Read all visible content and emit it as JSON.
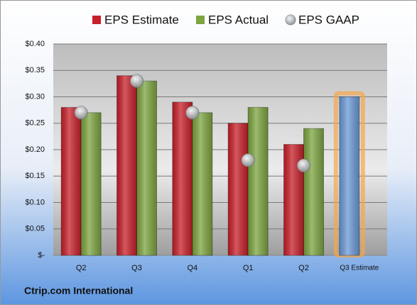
{
  "chart_data": {
    "type": "bar",
    "categories": [
      "Q2",
      "Q3",
      "Q4",
      "Q1",
      "Q2",
      "Q3 Estimate"
    ],
    "series": [
      {
        "name": "EPS Estimate",
        "color": "#c8202a",
        "values": [
          0.28,
          0.34,
          0.29,
          0.25,
          0.21,
          0.3
        ],
        "colors": [
          "#c8202a",
          "#c8202a",
          "#c8202a",
          "#c8202a",
          "#c8202a",
          "#6b9bd8"
        ],
        "glow": [
          null,
          null,
          null,
          null,
          null,
          "#f6a54a"
        ]
      },
      {
        "name": "EPS Actual",
        "color": "#7da540",
        "values": [
          0.27,
          0.33,
          0.27,
          0.28,
          0.24,
          null
        ]
      },
      {
        "name": "EPS GAAP",
        "color": "#9aa0a8",
        "marker": "circle",
        "values": [
          0.27,
          0.33,
          0.27,
          0.18,
          0.17,
          null
        ]
      }
    ],
    "ylim": [
      0,
      0.4
    ],
    "yticks": [
      {
        "value": 0,
        "label": "$-"
      },
      {
        "value": 0.05,
        "label": "$0.05"
      },
      {
        "value": 0.1,
        "label": "$0.10"
      },
      {
        "value": 0.15,
        "label": "$0.15"
      },
      {
        "value": 0.2,
        "label": "$0.20"
      },
      {
        "value": 0.25,
        "label": "$0.25"
      },
      {
        "value": 0.3,
        "label": "$0.30"
      },
      {
        "value": 0.35,
        "label": "$0.35"
      },
      {
        "value": 0.4,
        "label": "$0.40"
      }
    ],
    "grid": true,
    "legend": "top",
    "footer": "Ctrip.com International"
  }
}
